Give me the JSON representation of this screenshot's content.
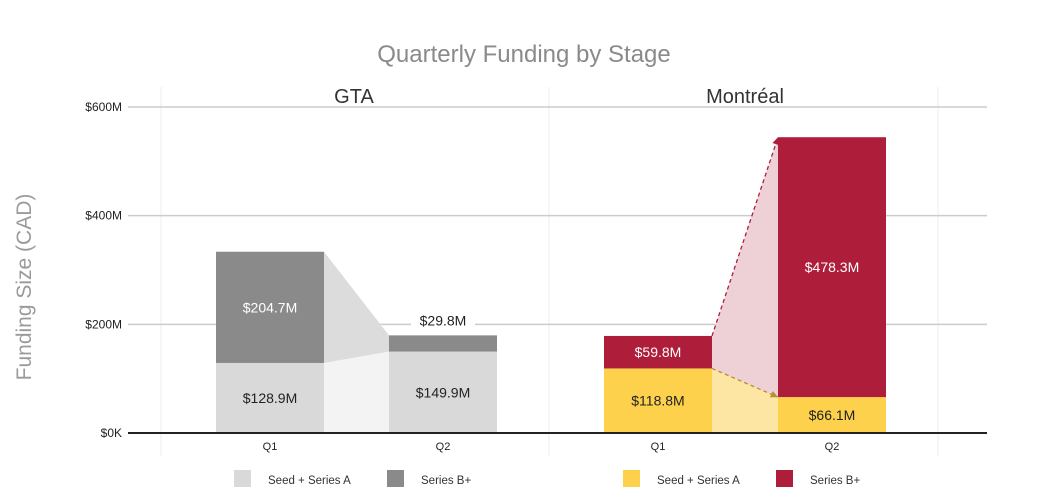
{
  "chart_data": {
    "type": "bar",
    "stacked": true,
    "title": "Quarterly Funding by Stage",
    "ylabel": "Funding Size (CAD)",
    "ylim": [
      0,
      600
    ],
    "yticks": [
      0,
      200,
      400,
      600
    ],
    "ytick_labels": [
      "$0K",
      "$200M",
      "$400M",
      "$600M"
    ],
    "grid": true,
    "legend_position": "bottom",
    "panels": [
      {
        "title": "GTA",
        "categories": [
          "Q1",
          "Q2"
        ],
        "series": [
          {
            "name": "Seed + Series A",
            "values": [
              128.9,
              149.9
            ],
            "labels": [
              "$128.9M",
              "$149.9M"
            ],
            "color": "#d9d9d9",
            "link_color": "#f3f3f3"
          },
          {
            "name": "Series B+",
            "values": [
              204.7,
              29.8
            ],
            "labels": [
              "$204.7M",
              "$29.8M"
            ],
            "color": "#8a8a8a",
            "link_color": "#dcdcdc"
          }
        ]
      },
      {
        "title": "Montréal",
        "categories": [
          "Q1",
          "Q2"
        ],
        "series": [
          {
            "name": "Seed + Series A",
            "values": [
              118.8,
              66.1
            ],
            "labels": [
              "$118.8M",
              "$66.1M"
            ],
            "color": "#fdd14c",
            "link_color": "#fde6a4",
            "arrow_color": "#b8902a"
          },
          {
            "name": "Series B+",
            "values": [
              59.8,
              478.3
            ],
            "labels": [
              "$59.8M",
              "$478.3M"
            ],
            "color": "#ae1e3a",
            "link_color": "#edd1d7",
            "arrow_color": "#ae1e3a"
          }
        ]
      }
    ]
  }
}
